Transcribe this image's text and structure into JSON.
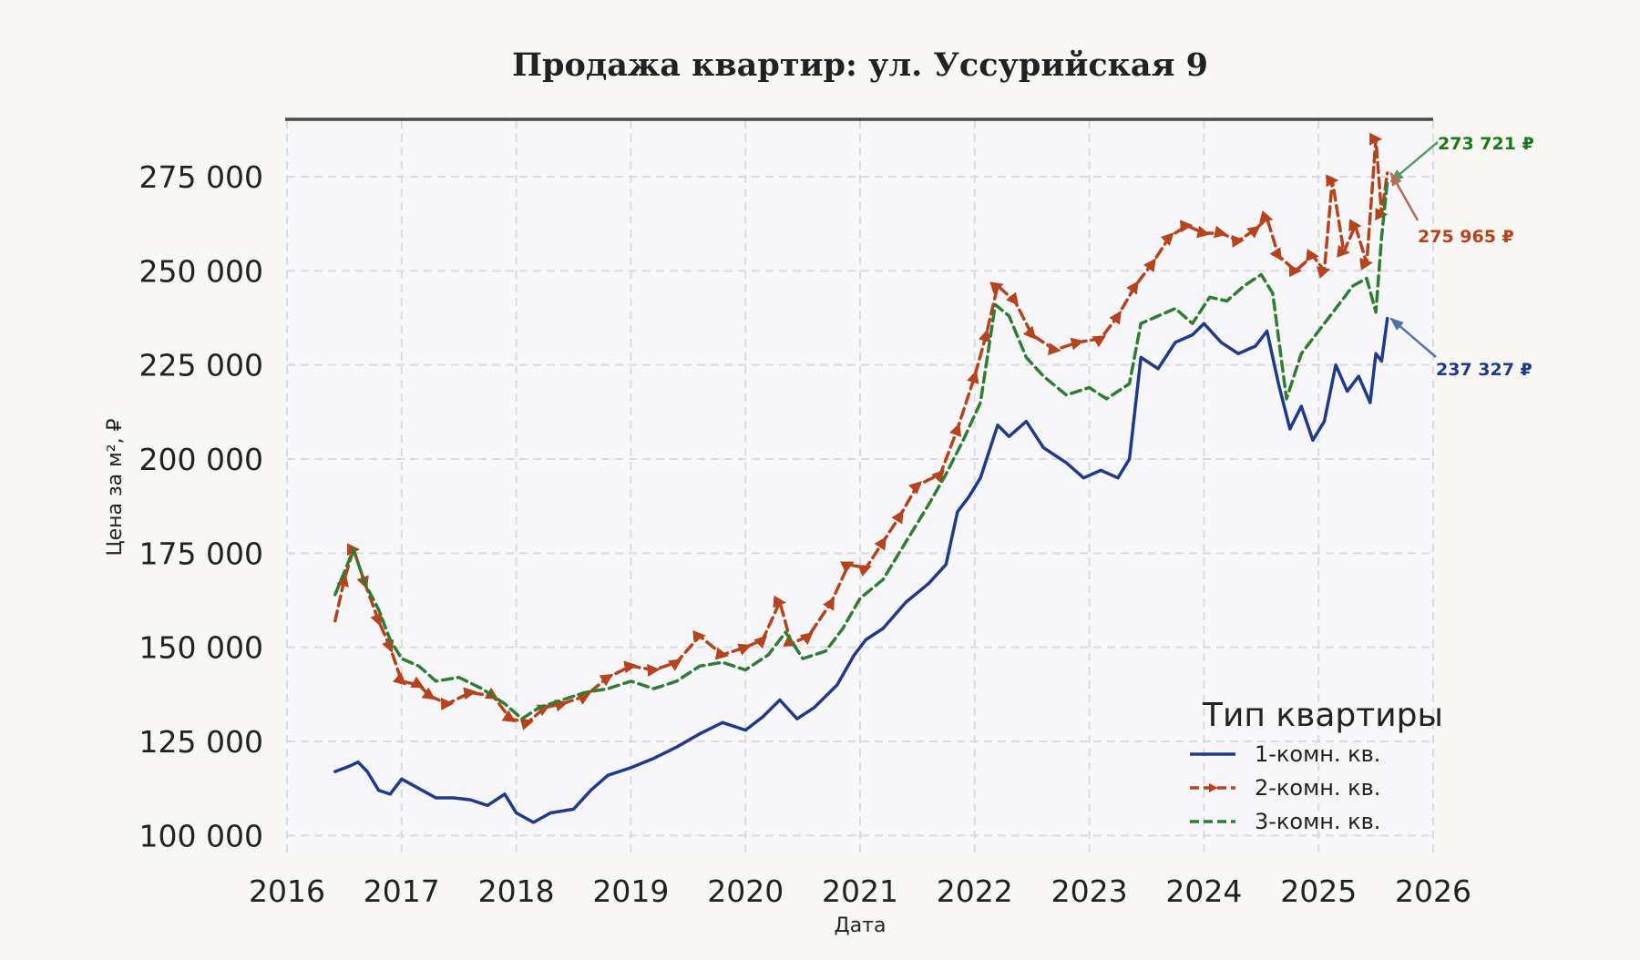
{
  "chart_data": {
    "type": "line",
    "title": "Продажа квартир: ул. Уссурийская 9",
    "xlabel": "Дата",
    "ylabel": "Цена за м², ₽",
    "xlim": [
      2016.0,
      2026.0
    ],
    "ylim": [
      95000,
      290000
    ],
    "x_ticks": [
      "2016",
      "2017",
      "2018",
      "2019",
      "2020",
      "2021",
      "2022",
      "2023",
      "2024",
      "2025",
      "2026"
    ],
    "y_ticks": [
      "100 000",
      "125 000",
      "150 000",
      "175 000",
      "200 000",
      "225 000",
      "250 000",
      "275 000"
    ],
    "grid": true,
    "legend": {
      "title": "Тип квартиры",
      "position": "bottom-right"
    },
    "series": [
      {
        "name": "1-комн. кв.",
        "color": "#1f3a8a",
        "style": "solid",
        "points": [
          [
            2016.42,
            117000
          ],
          [
            2016.55,
            118500
          ],
          [
            2016.62,
            119500
          ],
          [
            2016.7,
            117000
          ],
          [
            2016.8,
            112000
          ],
          [
            2016.9,
            111000
          ],
          [
            2017.0,
            115000
          ],
          [
            2017.15,
            112500
          ],
          [
            2017.3,
            110000
          ],
          [
            2017.45,
            110000
          ],
          [
            2017.6,
            109500
          ],
          [
            2017.75,
            108000
          ],
          [
            2017.9,
            111000
          ],
          [
            2018.0,
            106000
          ],
          [
            2018.15,
            103500
          ],
          [
            2018.3,
            106000
          ],
          [
            2018.5,
            107000
          ],
          [
            2018.65,
            112000
          ],
          [
            2018.8,
            116000
          ],
          [
            2019.0,
            118000
          ],
          [
            2019.2,
            120500
          ],
          [
            2019.4,
            123500
          ],
          [
            2019.6,
            127000
          ],
          [
            2019.8,
            130000
          ],
          [
            2020.0,
            128000
          ],
          [
            2020.15,
            131500
          ],
          [
            2020.3,
            136000
          ],
          [
            2020.45,
            131000
          ],
          [
            2020.6,
            134000
          ],
          [
            2020.8,
            140000
          ],
          [
            2020.95,
            148000
          ],
          [
            2021.05,
            152000
          ],
          [
            2021.2,
            155000
          ],
          [
            2021.4,
            162000
          ],
          [
            2021.6,
            167000
          ],
          [
            2021.75,
            172000
          ],
          [
            2021.85,
            186000
          ],
          [
            2021.95,
            190000
          ],
          [
            2022.05,
            195000
          ],
          [
            2022.2,
            209000
          ],
          [
            2022.3,
            206000
          ],
          [
            2022.45,
            210000
          ],
          [
            2022.6,
            203000
          ],
          [
            2022.8,
            199000
          ],
          [
            2022.95,
            195000
          ],
          [
            2023.1,
            197000
          ],
          [
            2023.25,
            195000
          ],
          [
            2023.35,
            200000
          ],
          [
            2023.45,
            227000
          ],
          [
            2023.6,
            224000
          ],
          [
            2023.75,
            231000
          ],
          [
            2023.9,
            233000
          ],
          [
            2024.0,
            236000
          ],
          [
            2024.15,
            231000
          ],
          [
            2024.3,
            228000
          ],
          [
            2024.45,
            230000
          ],
          [
            2024.55,
            234000
          ],
          [
            2024.65,
            220000
          ],
          [
            2024.75,
            208000
          ],
          [
            2024.85,
            214000
          ],
          [
            2024.95,
            205000
          ],
          [
            2025.05,
            210000
          ],
          [
            2025.15,
            225000
          ],
          [
            2025.25,
            218000
          ],
          [
            2025.35,
            222000
          ],
          [
            2025.45,
            215000
          ],
          [
            2025.5,
            228000
          ],
          [
            2025.55,
            226000
          ],
          [
            2025.6,
            237327
          ]
        ]
      },
      {
        "name": "2-комн. кв.",
        "color": "#b5431c",
        "style": "dashed-arrow",
        "points": [
          [
            2016.42,
            157000
          ],
          [
            2016.5,
            168000
          ],
          [
            2016.58,
            176000
          ],
          [
            2016.68,
            167000
          ],
          [
            2016.8,
            157000
          ],
          [
            2016.9,
            150000
          ],
          [
            2017.0,
            141000
          ],
          [
            2017.15,
            140000
          ],
          [
            2017.25,
            137000
          ],
          [
            2017.4,
            135000
          ],
          [
            2017.6,
            138000
          ],
          [
            2017.8,
            137000
          ],
          [
            2017.95,
            131000
          ],
          [
            2018.1,
            130000
          ],
          [
            2018.25,
            134000
          ],
          [
            2018.4,
            135000
          ],
          [
            2018.6,
            137000
          ],
          [
            2018.8,
            142000
          ],
          [
            2019.0,
            145000
          ],
          [
            2019.2,
            144000
          ],
          [
            2019.4,
            146000
          ],
          [
            2019.6,
            153000
          ],
          [
            2019.8,
            148000
          ],
          [
            2020.0,
            150000
          ],
          [
            2020.15,
            152000
          ],
          [
            2020.3,
            162000
          ],
          [
            2020.4,
            151000
          ],
          [
            2020.55,
            153000
          ],
          [
            2020.75,
            162000
          ],
          [
            2020.9,
            172000
          ],
          [
            2021.05,
            171000
          ],
          [
            2021.2,
            178000
          ],
          [
            2021.35,
            185000
          ],
          [
            2021.5,
            193000
          ],
          [
            2021.7,
            196000
          ],
          [
            2021.85,
            208000
          ],
          [
            2022.0,
            222000
          ],
          [
            2022.1,
            233000
          ],
          [
            2022.2,
            246000
          ],
          [
            2022.35,
            242000
          ],
          [
            2022.5,
            233000
          ],
          [
            2022.7,
            229000
          ],
          [
            2022.9,
            231000
          ],
          [
            2023.1,
            232000
          ],
          [
            2023.25,
            238000
          ],
          [
            2023.4,
            246000
          ],
          [
            2023.55,
            252000
          ],
          [
            2023.7,
            259000
          ],
          [
            2023.85,
            262000
          ],
          [
            2024.0,
            260000
          ],
          [
            2024.15,
            260000
          ],
          [
            2024.3,
            258000
          ],
          [
            2024.45,
            261000
          ],
          [
            2024.55,
            264000
          ],
          [
            2024.65,
            254000
          ],
          [
            2024.8,
            250000
          ],
          [
            2024.95,
            254000
          ],
          [
            2025.05,
            250000
          ],
          [
            2025.12,
            274000
          ],
          [
            2025.22,
            255000
          ],
          [
            2025.32,
            262000
          ],
          [
            2025.42,
            252000
          ],
          [
            2025.5,
            285000
          ],
          [
            2025.55,
            265000
          ],
          [
            2025.6,
            275965
          ]
        ]
      },
      {
        "name": "3-комн. кв.",
        "color": "#2e7d32",
        "style": "dashed",
        "points": [
          [
            2016.42,
            164000
          ],
          [
            2016.5,
            170000
          ],
          [
            2016.58,
            176000
          ],
          [
            2016.68,
            167000
          ],
          [
            2016.8,
            160000
          ],
          [
            2016.9,
            152000
          ],
          [
            2017.0,
            147000
          ],
          [
            2017.15,
            145000
          ],
          [
            2017.3,
            141000
          ],
          [
            2017.5,
            142000
          ],
          [
            2017.7,
            139000
          ],
          [
            2017.9,
            135000
          ],
          [
            2018.05,
            131000
          ],
          [
            2018.2,
            134000
          ],
          [
            2018.4,
            136000
          ],
          [
            2018.6,
            138000
          ],
          [
            2018.8,
            139000
          ],
          [
            2019.0,
            141000
          ],
          [
            2019.2,
            139000
          ],
          [
            2019.4,
            141000
          ],
          [
            2019.6,
            145000
          ],
          [
            2019.8,
            146000
          ],
          [
            2020.0,
            144000
          ],
          [
            2020.2,
            148000
          ],
          [
            2020.35,
            154000
          ],
          [
            2020.5,
            147000
          ],
          [
            2020.7,
            149000
          ],
          [
            2020.85,
            155000
          ],
          [
            2021.0,
            163000
          ],
          [
            2021.2,
            168000
          ],
          [
            2021.4,
            178000
          ],
          [
            2021.6,
            188000
          ],
          [
            2021.75,
            196000
          ],
          [
            2021.9,
            205000
          ],
          [
            2022.05,
            215000
          ],
          [
            2022.18,
            241000
          ],
          [
            2022.3,
            238000
          ],
          [
            2022.45,
            227000
          ],
          [
            2022.6,
            222000
          ],
          [
            2022.8,
            217000
          ],
          [
            2023.0,
            219000
          ],
          [
            2023.15,
            216000
          ],
          [
            2023.35,
            220000
          ],
          [
            2023.45,
            236000
          ],
          [
            2023.6,
            238000
          ],
          [
            2023.75,
            240000
          ],
          [
            2023.9,
            236000
          ],
          [
            2024.05,
            243000
          ],
          [
            2024.2,
            242000
          ],
          [
            2024.35,
            246000
          ],
          [
            2024.5,
            249000
          ],
          [
            2024.6,
            244000
          ],
          [
            2024.72,
            216000
          ],
          [
            2024.85,
            228000
          ],
          [
            2025.0,
            234000
          ],
          [
            2025.15,
            240000
          ],
          [
            2025.3,
            246000
          ],
          [
            2025.42,
            248000
          ],
          [
            2025.5,
            239000
          ],
          [
            2025.55,
            259000
          ],
          [
            2025.6,
            273721
          ]
        ]
      }
    ],
    "annotations": [
      {
        "series": "3-комн. кв.",
        "x": 2025.6,
        "y": 273721,
        "text": "273 721 ₽",
        "color": "#1a7a1a"
      },
      {
        "series": "2-комн. кв.",
        "x": 2025.6,
        "y": 275965,
        "text": "275 965 ₽",
        "color": "#b5431c"
      },
      {
        "series": "1-комн. кв.",
        "x": 2025.6,
        "y": 237327,
        "text": "237 327 ₽",
        "color": "#1f3a8a"
      }
    ]
  }
}
